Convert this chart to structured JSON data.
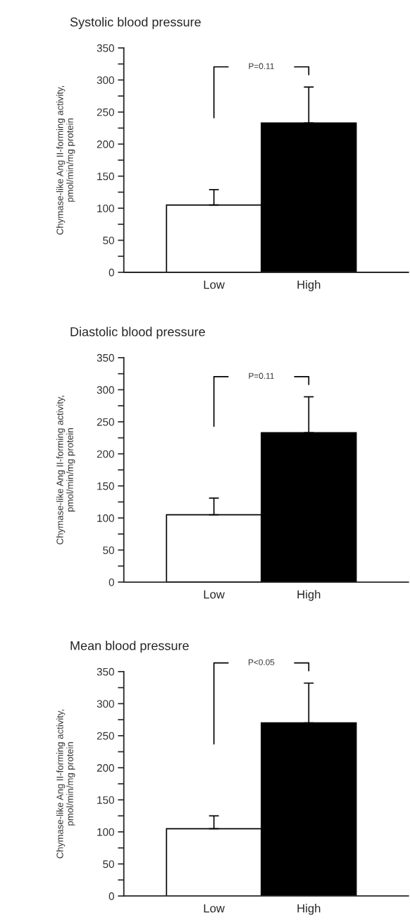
{
  "chart_data": [
    {
      "type": "bar",
      "title": "Systolic blood pressure",
      "ylabel": "Chymase-like Ang II-forming activity,\npmol/min/mg protein",
      "categories": [
        "Low",
        "High"
      ],
      "values": [
        105,
        233
      ],
      "colors": [
        "#ffffff",
        "#000000"
      ],
      "errors": [
        [
          105,
          129
        ],
        [
          233,
          289
        ]
      ],
      "ylim": [
        0,
        350
      ],
      "yticks": [
        0,
        {
          "value": 25,
          "label": null
        },
        50,
        {
          "value": 75,
          "label": null
        },
        100,
        {
          "value": 125,
          "label": null
        },
        150,
        {
          "value": 175,
          "label": null
        },
        200,
        {
          "value": 225,
          "label": null
        },
        250,
        {
          "value": 275,
          "label": null
        },
        300,
        {
          "value": 325,
          "label": null
        },
        350
      ],
      "annotations": [
        "P=0.11"
      ]
    },
    {
      "type": "bar",
      "title": "Diastolic blood pressure",
      "ylabel": "Chymase-like Ang II-forming activity,\npmol/min/mg protein",
      "categories": [
        "Low",
        "High"
      ],
      "values": [
        105,
        233
      ],
      "colors": [
        "#ffffff",
        "#000000"
      ],
      "errors": [
        [
          105,
          131
        ],
        [
          233,
          289
        ]
      ],
      "ylim": [
        0,
        350
      ],
      "yticks": [
        0,
        {
          "value": 25,
          "label": null
        },
        50,
        {
          "value": 75,
          "label": null
        },
        100,
        {
          "value": 125,
          "label": null
        },
        150,
        {
          "value": 175,
          "label": null
        },
        200,
        {
          "value": 225,
          "label": null
        },
        250,
        {
          "value": 275,
          "label": null
        },
        300,
        {
          "value": 325,
          "label": null
        },
        350
      ],
      "annotations": [
        "P=0.11"
      ]
    },
    {
      "type": "bar",
      "title": "Mean blood pressure",
      "ylabel": "Chymase-like Ang II-forming activity,\npmol/min/mg protein",
      "categories": [
        "Low",
        "High"
      ],
      "values": [
        105,
        270
      ],
      "colors": [
        "#ffffff",
        "#000000"
      ],
      "errors": [
        [
          105,
          125
        ],
        [
          270,
          332
        ]
      ],
      "ylim": [
        0,
        350
      ],
      "yticks": [
        0,
        {
          "value": 25,
          "label": null
        },
        50,
        {
          "value": 75,
          "label": null
        },
        100,
        {
          "value": 125,
          "label": null
        },
        150,
        {
          "value": 175,
          "label": null
        },
        200,
        {
          "value": 225,
          "label": null
        },
        250,
        {
          "value": 275,
          "label": null
        },
        300,
        {
          "value": 325,
          "label": null
        },
        350
      ],
      "annotations": [
        "P<0.05"
      ]
    }
  ]
}
